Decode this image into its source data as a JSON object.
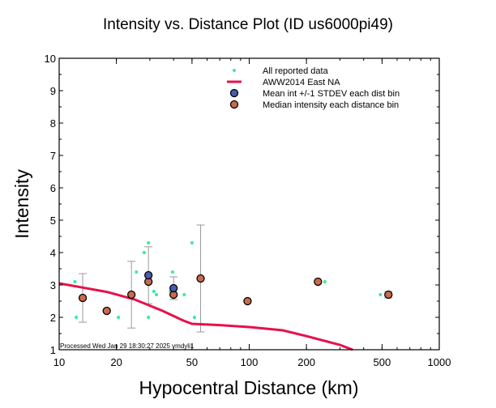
{
  "chart_data": {
    "type": "scatter",
    "title": "Intensity vs. Distance Plot (ID us6000pi49)",
    "xlabel": "Hypocentral Distance (km)",
    "ylabel": "Intensity",
    "xscale": "log",
    "xlim": [
      10,
      1000
    ],
    "ylim": [
      1,
      10
    ],
    "x_ticks": [
      10,
      20,
      50,
      100,
      200,
      500,
      1000
    ],
    "x_tick_labels": [
      "10",
      "20",
      "50",
      "100",
      "200",
      "500",
      "1000"
    ],
    "y_ticks": [
      1,
      2,
      3,
      4,
      5,
      6,
      7,
      8,
      9,
      10
    ],
    "y_tick_labels": [
      "1",
      "2",
      "3",
      "4",
      "5",
      "6",
      "7",
      "8",
      "9",
      "10"
    ],
    "legend_position": "top-right",
    "legend": [
      {
        "key": "reported",
        "label": "All reported data"
      },
      {
        "key": "prediction",
        "label": "AWW2014 East NA"
      },
      {
        "key": "mean",
        "label": "Mean int +/-1 STDEV each dist bin"
      },
      {
        "key": "median",
        "label": "Median intensity each distance bin"
      }
    ],
    "colors": {
      "reported": "#33ee99",
      "prediction": "#e8104a",
      "mean_fill": "#4a5bb0",
      "median_fill": "#c96a4e",
      "errorbar": "#999999"
    },
    "series": [
      {
        "name": "All reported data",
        "type": "scatter",
        "points": [
          [
            12.1,
            3.1
          ],
          [
            12.3,
            2.0
          ],
          [
            17.5,
            2.2
          ],
          [
            20.5,
            2.0
          ],
          [
            25.5,
            3.4
          ],
          [
            28.0,
            4.0
          ],
          [
            29.0,
            3.3
          ],
          [
            29.5,
            4.3
          ],
          [
            29.5,
            2.0
          ],
          [
            31.5,
            2.8
          ],
          [
            32.5,
            2.7
          ],
          [
            38.5,
            2.8
          ],
          [
            39.5,
            3.4
          ],
          [
            45.5,
            2.7
          ],
          [
            50.0,
            4.3
          ],
          [
            51.5,
            2.0
          ],
          [
            250.0,
            3.1
          ],
          [
            490.0,
            2.7
          ]
        ]
      },
      {
        "name": "AWW2014 East NA",
        "type": "line",
        "points": [
          [
            10,
            3.05
          ],
          [
            13,
            2.93
          ],
          [
            18,
            2.78
          ],
          [
            25,
            2.55
          ],
          [
            35,
            2.2
          ],
          [
            45,
            1.9
          ],
          [
            50,
            1.8
          ],
          [
            70,
            1.76
          ],
          [
            100,
            1.7
          ],
          [
            150,
            1.6
          ],
          [
            200,
            1.42
          ],
          [
            300,
            1.15
          ],
          [
            350,
            1.0
          ]
        ]
      },
      {
        "name": "Mean int +/-1 STDEV each dist bin",
        "type": "errorbar",
        "points": [
          {
            "x": 13.3,
            "y": 2.6,
            "lower": 1.85,
            "upper": 3.35
          },
          {
            "x": 17.8,
            "y": 2.2,
            "lower": 2.2,
            "upper": 2.2
          },
          {
            "x": 24.0,
            "y": 2.7,
            "lower": 1.67,
            "upper": 3.73
          },
          {
            "x": 29.5,
            "y": 3.3,
            "lower": 2.42,
            "upper": 4.18
          },
          {
            "x": 40.0,
            "y": 2.9,
            "lower": 2.55,
            "upper": 3.25
          },
          {
            "x": 55.5,
            "y": 3.2,
            "lower": 1.55,
            "upper": 4.85
          },
          {
            "x": 98.0,
            "y": 2.5,
            "lower": 2.5,
            "upper": 2.5
          },
          {
            "x": 230.0,
            "y": 3.1,
            "lower": 3.1,
            "upper": 3.1
          },
          {
            "x": 540.0,
            "y": 2.7,
            "lower": 2.6,
            "upper": 2.8
          }
        ]
      },
      {
        "name": "Median intensity each distance bin",
        "type": "scatter",
        "points": [
          [
            13.3,
            2.6
          ],
          [
            17.8,
            2.2
          ],
          [
            24.0,
            2.7
          ],
          [
            29.5,
            3.1
          ],
          [
            40.0,
            2.7
          ],
          [
            55.5,
            3.2
          ],
          [
            98.0,
            2.5
          ],
          [
            230.0,
            3.1
          ],
          [
            540.0,
            2.7
          ]
        ]
      }
    ],
    "footer": "Processed Wed Jan 29 18:30:27 2025 vmdyli1"
  }
}
